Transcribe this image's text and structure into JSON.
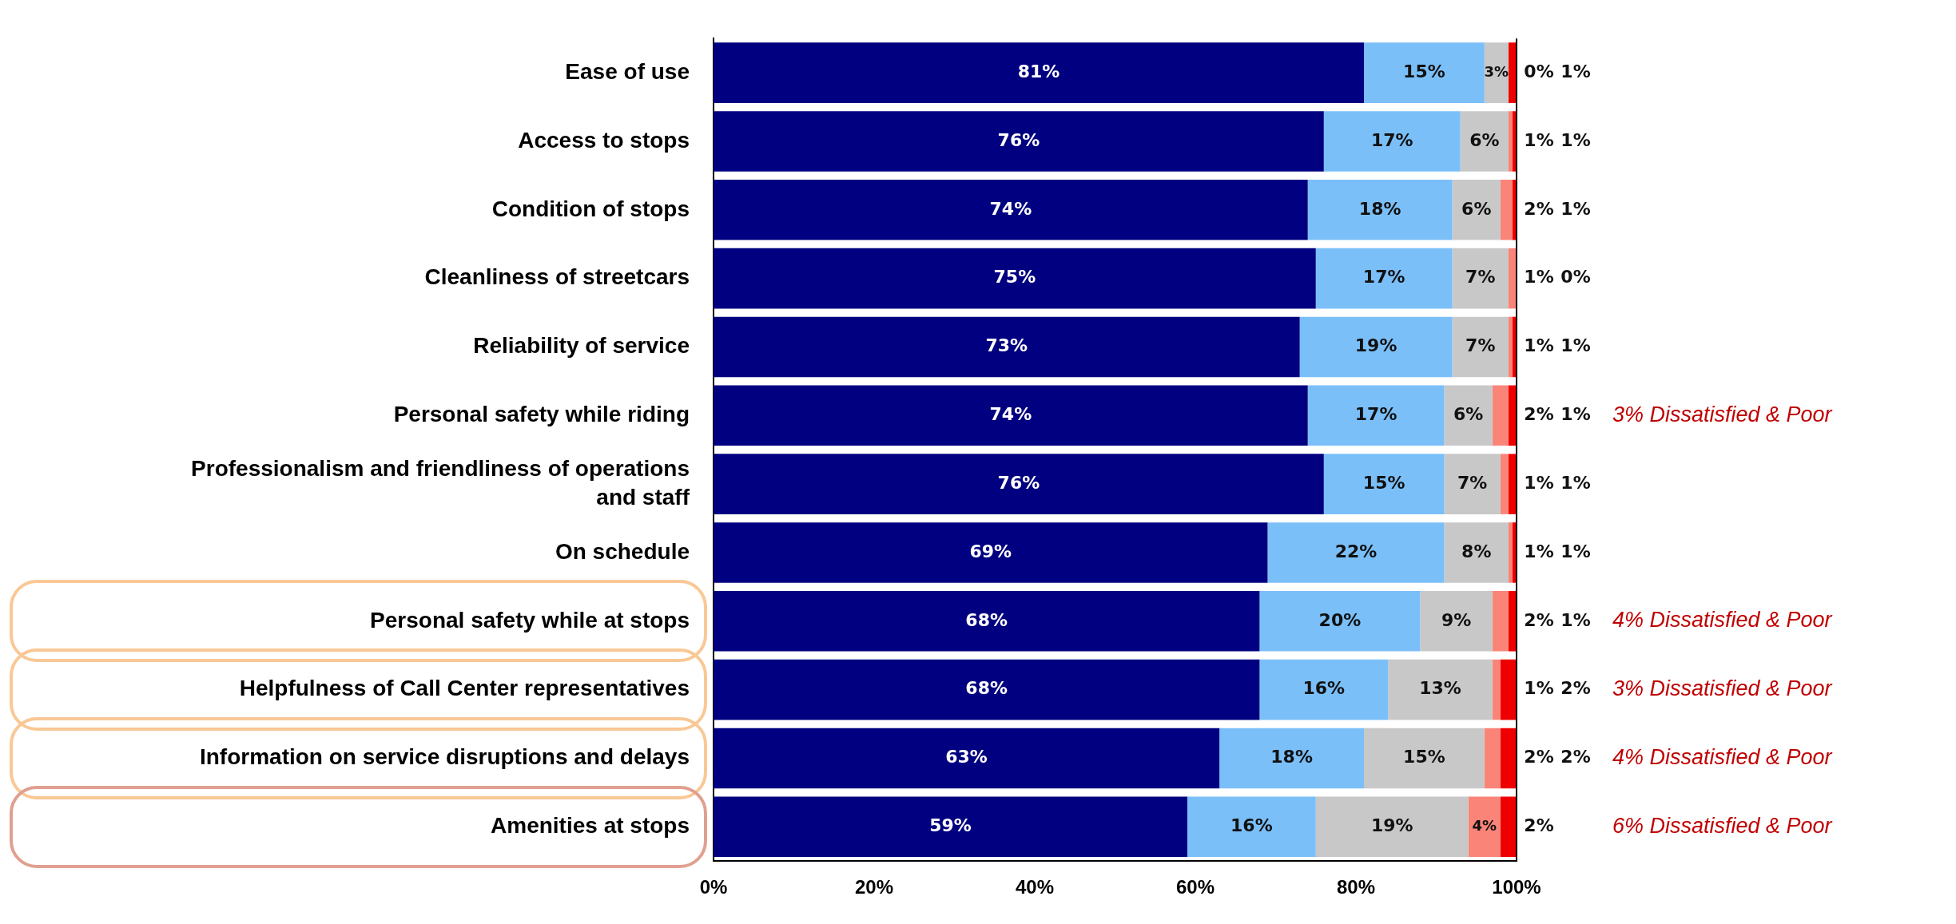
{
  "chart_data": {
    "type": "bar",
    "orientation": "horizontal",
    "stacked": true,
    "grid": false,
    "legend": false,
    "categories": [
      "Ease of use",
      "Access to stops",
      "Condition of stops",
      "Cleanliness of streetcars",
      "Reliability of service",
      "Personal safety while riding",
      "Professionalism and friendliness of operations and staff",
      "On schedule",
      "Personal safety while at stops",
      "Helpfulness of Call Center representatives",
      "Information on service disruptions and delays",
      "Amenities at stops"
    ],
    "series": [
      {
        "color": "#000080",
        "values": [
          81,
          76,
          74,
          75,
          73,
          74,
          76,
          69,
          68,
          68,
          63,
          59
        ],
        "value_labels": [
          "81%",
          "76%",
          "74%",
          "75%",
          "73%",
          "74%",
          "76%",
          "69%",
          "68%",
          "68%",
          "63%",
          "59%"
        ]
      },
      {
        "color": "#7bbff9",
        "values": [
          15,
          17,
          18,
          17,
          19,
          17,
          15,
          22,
          20,
          16,
          18,
          16
        ],
        "value_labels": [
          "15%",
          "17%",
          "18%",
          "17%",
          "19%",
          "17%",
          "15%",
          "22%",
          "20%",
          "16%",
          "18%",
          "16%"
        ]
      },
      {
        "color": "#c8c8c8",
        "values": [
          3,
          6,
          6,
          7,
          7,
          6,
          7,
          8,
          9,
          13,
          15,
          19
        ],
        "value_labels": [
          "3%",
          "6%",
          "6%",
          "7%",
          "7%",
          "6%",
          "7%",
          "8%",
          "9%",
          "13%",
          "15%",
          "19%"
        ]
      },
      {
        "color": "#fa8478",
        "values": [
          0,
          0.5,
          1.5,
          1,
          0.5,
          2,
          1,
          0.5,
          2,
          1,
          2,
          4
        ],
        "value_labels": [
          "0%",
          "1%",
          "2%",
          "1%",
          "1%",
          "2%",
          "1%",
          "1%",
          "2%",
          "1%",
          "2%",
          "4%"
        ]
      },
      {
        "color": "#ee0000",
        "values": [
          1,
          0.5,
          0.5,
          0,
          0.5,
          1,
          1,
          0.5,
          1,
          2,
          2,
          2
        ],
        "value_labels": [
          "1%",
          "1%",
          "1%",
          "0%",
          "1%",
          "1%",
          "1%",
          "1%",
          "1%",
          "2%",
          "2%",
          "2%"
        ]
      }
    ],
    "xlim": [
      0,
      100
    ],
    "xticks": [
      {
        "value": 0,
        "label": "0%"
      },
      {
        "value": 20,
        "label": "20%"
      },
      {
        "value": 40,
        "label": "40%"
      },
      {
        "value": 60,
        "label": "60%"
      },
      {
        "value": 80,
        "label": "80%"
      },
      {
        "value": 100,
        "label": "100%"
      }
    ],
    "annotations": [
      "3% Dissatisfied & Poor",
      "4% Dissatisfied & Poor",
      "3% Dissatisfied & Poor",
      "4% Dissatisfied & Poor",
      "6% Dissatisfied & Poor"
    ]
  }
}
